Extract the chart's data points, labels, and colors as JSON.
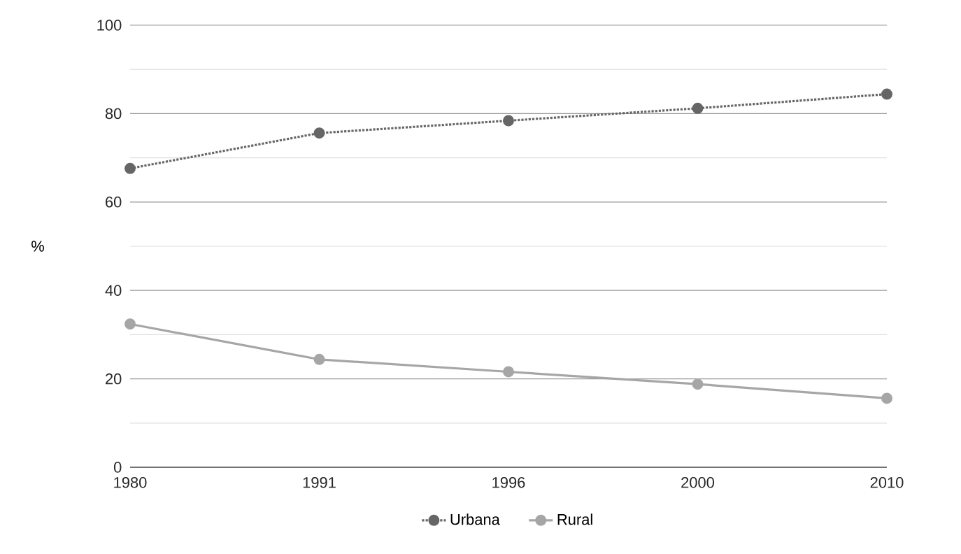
{
  "chart_data": {
    "type": "line",
    "ylabel": "%",
    "categories": [
      "1980",
      "1991",
      "1996",
      "2000",
      "2010"
    ],
    "series": [
      {
        "name": "Urbana",
        "color": "#666666",
        "line_style": "dotted",
        "values": [
          67.6,
          75.6,
          78.4,
          81.2,
          84.4
        ]
      },
      {
        "name": "Rural",
        "color": "#a6a6a6",
        "line_style": "solid",
        "values": [
          32.4,
          24.4,
          21.6,
          18.8,
          15.6
        ]
      }
    ],
    "ylim": [
      0,
      100
    ],
    "yticks": [
      0,
      {
        "value": 10,
        "label": null
      },
      20,
      {
        "value": 30,
        "label": null
      },
      40,
      {
        "value": 50,
        "label": null
      },
      60,
      {
        "value": 70,
        "label": null
      },
      80,
      {
        "value": 90,
        "label": null
      },
      100
    ],
    "grid": "y",
    "legend": "bottom",
    "marker": "circle"
  }
}
